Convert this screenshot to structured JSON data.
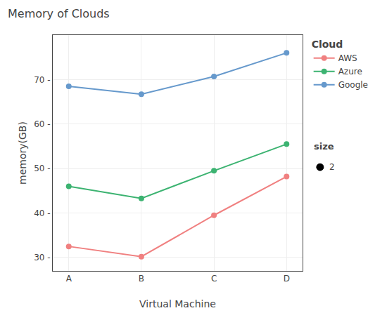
{
  "chart_data": {
    "type": "line",
    "title": "Memory of Clouds",
    "x_label": "Virtual Machine",
    "y_label": "memory(GB)",
    "categories": [
      "A",
      "B",
      "C",
      "D"
    ],
    "series": [
      {
        "name": "AWS",
        "color": "#F08080",
        "values": [
          32.5,
          30.2,
          39.5,
          48.2
        ]
      },
      {
        "name": "Azure",
        "color": "#3CB371",
        "values": [
          46.0,
          43.3,
          49.5,
          55.5
        ]
      },
      {
        "name": "Google",
        "color": "#6699CC",
        "values": [
          68.5,
          66.7,
          70.7,
          76.0
        ]
      }
    ],
    "ylim": [
      27,
      80
    ],
    "yticks": [
      {
        "value": 30,
        "label": "30 -"
      },
      {
        "value": 40,
        "label": "40 -"
      },
      {
        "value": 50,
        "label": "50 -"
      },
      {
        "value": 60,
        "label": "60 -"
      },
      {
        "value": 70,
        "label": "70 -"
      }
    ],
    "grid": true,
    "legend": "right",
    "legend_title": "Cloud",
    "marker": "circle",
    "annotations": [
      "size",
      "2"
    ]
  }
}
